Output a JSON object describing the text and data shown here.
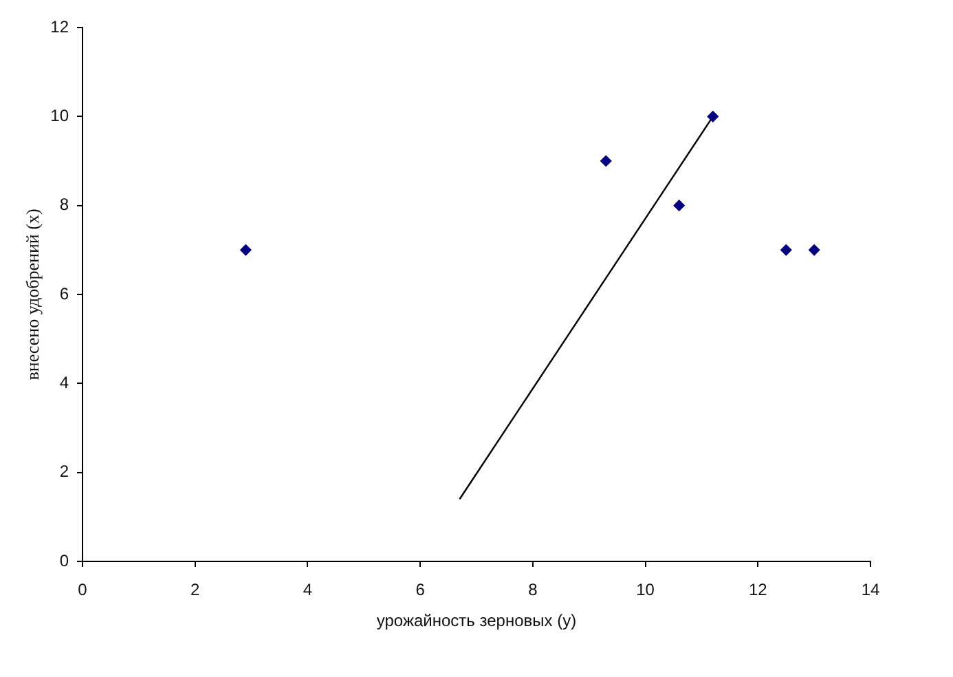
{
  "chart_data": {
    "type": "scatter",
    "xlabel": "урожайность зерновых (y)",
    "ylabel": "внесено удобрений (x)",
    "xlim": [
      0,
      14
    ],
    "xticks": [
      0,
      2,
      4,
      6,
      8,
      10,
      12,
      14
    ],
    "ylim": [
      0,
      12
    ],
    "yticks": [
      0,
      2,
      4,
      6,
      8,
      10,
      12
    ],
    "grid": false,
    "legend": false,
    "series": [
      {
        "color": "#000080",
        "marker": "diamond",
        "x": [
          2.9,
          9.3,
          10.6,
          11.2,
          12.5,
          13.0
        ],
        "values": [
          7,
          9,
          8,
          10,
          7,
          7
        ]
      },
      {
        "type": "line",
        "color": "#000000",
        "marker": "none",
        "line_style": "solid",
        "x": [
          6.7,
          11.2
        ],
        "values": [
          1.4,
          10.0
        ]
      }
    ]
  }
}
